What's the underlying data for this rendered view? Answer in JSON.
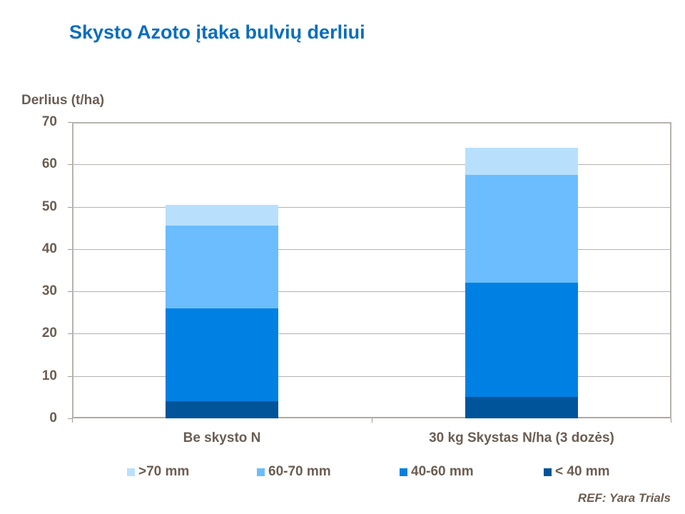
{
  "title": "Skysto Azoto įtaka bulvių derliui",
  "reference": "REF: Yara Trials",
  "chart_data": {
    "type": "bar",
    "stacked": true,
    "title": "Skysto Azoto įtaka bulvių derliui",
    "ylabel": "Derlius (t/ha)",
    "xlabel": "",
    "ylim": [
      0,
      70
    ],
    "yticks": [
      0,
      10,
      20,
      30,
      40,
      50,
      60,
      70
    ],
    "grid": true,
    "legend_position": "bottom",
    "categories": [
      "Be skysto N",
      "30 kg Skystas N/ha (3 dozės)"
    ],
    "series": [
      {
        "name": "< 40 mm",
        "color": "#00549a",
        "values": [
          4,
          5
        ]
      },
      {
        "name": "40-60 mm",
        "color": "#0080e2",
        "values": [
          22,
          27
        ]
      },
      {
        "name": "60-70 mm",
        "color": "#6bbdfd",
        "values": [
          19.5,
          25.5
        ]
      },
      {
        "name": ">70 mm",
        "color": "#b8e0fd",
        "values": [
          5,
          6.5
        ]
      }
    ],
    "totals": [
      50.5,
      64
    ]
  },
  "legend": [
    {
      "label": ">70 mm",
      "color": "#b8e0fd"
    },
    {
      "label": "60-70 mm",
      "color": "#6bbdfd"
    },
    {
      "label": "40-60 mm",
      "color": "#0080e2"
    },
    {
      "label": "< 40 mm",
      "color": "#00549a"
    }
  ],
  "yaxis_labels": [
    "0",
    "10",
    "20",
    "30",
    "40",
    "50",
    "60",
    "70"
  ]
}
